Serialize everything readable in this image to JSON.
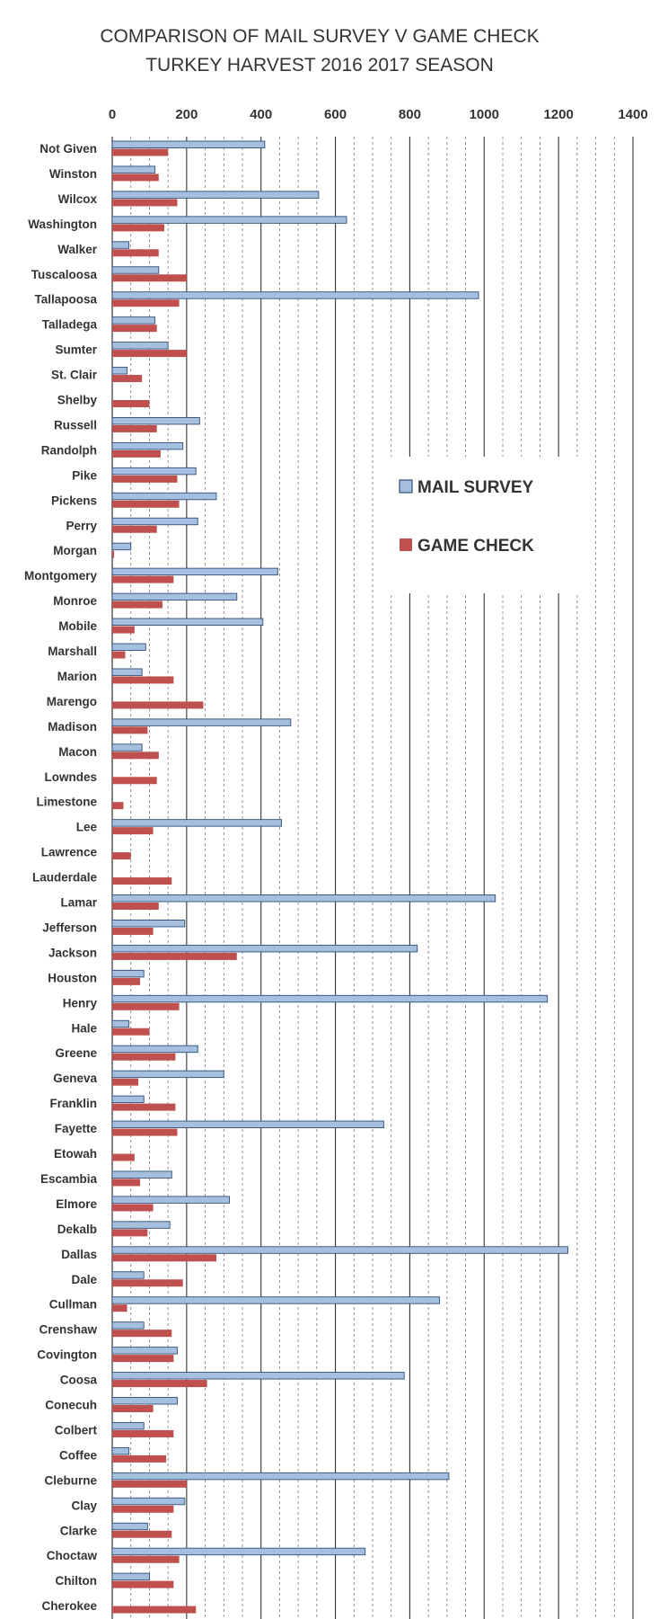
{
  "chart_data": {
    "type": "bar",
    "orientation": "horizontal",
    "title": [
      "COMPARISON OF MAIL SURVEY V GAME CHECK",
      "TURKEY HARVEST 2016 2017 SEASON"
    ],
    "xlabel": "",
    "ylabel": "",
    "xlim": [
      0,
      1400
    ],
    "x_ticks": [
      "0",
      "200",
      "400",
      "600",
      "800",
      "1000",
      "1200",
      "1400"
    ],
    "grid": true,
    "legend_position": "right-center",
    "categories": [
      "Not Given",
      "Winston",
      "Wilcox",
      "Washington",
      "Walker",
      "Tuscaloosa",
      "Tallapoosa",
      "Talladega",
      "Sumter",
      "St. Clair",
      "Shelby",
      "Russell",
      "Randolph",
      "Pike",
      "Pickens",
      "Perry",
      "Morgan",
      "Montgomery",
      "Monroe",
      "Mobile",
      "Marshall",
      "Marion",
      "Marengo",
      "Madison",
      "Macon",
      "Lowndes",
      "Limestone",
      "Lee",
      "Lawrence",
      "Lauderdale",
      "Lamar",
      "Jefferson",
      "Jackson",
      "Houston",
      "Henry",
      "Hale",
      "Greene",
      "Geneva",
      "Franklin",
      "Fayette",
      "Etowah",
      "Escambia",
      "Elmore",
      "Dekalb",
      "Dallas",
      "Dale",
      "Cullman",
      "Crenshaw",
      "Covington",
      "Coosa",
      "Conecuh",
      "Colbert",
      "Coffee",
      "Cleburne",
      "Clay",
      "Clarke",
      "Choctaw",
      "Chilton",
      "Cherokee"
    ],
    "series": [
      {
        "name": "MAIL SURVEY",
        "color": "#a7bfdf",
        "values": [
          410,
          115,
          555,
          630,
          45,
          125,
          985,
          115,
          150,
          40,
          0,
          235,
          190,
          225,
          280,
          230,
          50,
          445,
          335,
          405,
          90,
          80,
          0,
          480,
          80,
          0,
          0,
          455,
          0,
          0,
          1030,
          195,
          820,
          85,
          1170,
          45,
          230,
          300,
          85,
          730,
          0,
          160,
          315,
          155,
          1225,
          85,
          880,
          85,
          175,
          785,
          175,
          85,
          45,
          905,
          195,
          95,
          680,
          100,
          0
        ]
      },
      {
        "name": "GAME CHECK",
        "color": "#c0504d",
        "values": [
          150,
          125,
          175,
          140,
          125,
          200,
          180,
          120,
          200,
          80,
          100,
          120,
          130,
          175,
          180,
          120,
          5,
          165,
          135,
          60,
          35,
          165,
          245,
          95,
          125,
          120,
          30,
          110,
          50,
          160,
          125,
          110,
          335,
          75,
          180,
          100,
          170,
          70,
          170,
          175,
          60,
          75,
          110,
          95,
          280,
          190,
          40,
          160,
          165,
          255,
          110,
          165,
          145,
          200,
          165,
          160,
          180,
          165,
          225
        ]
      }
    ]
  }
}
